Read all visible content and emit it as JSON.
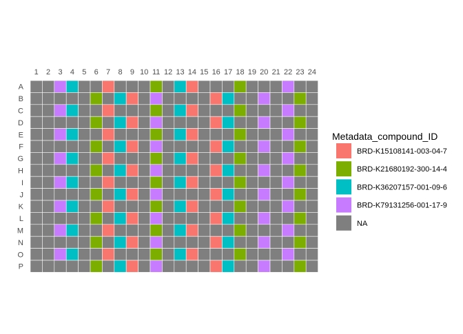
{
  "chart_data": {
    "type": "heatmap",
    "title": "",
    "xlabel": "",
    "ylabel": "",
    "columns": [
      "1",
      "2",
      "3",
      "4",
      "5",
      "6",
      "7",
      "8",
      "9",
      "10",
      "11",
      "12",
      "13",
      "14",
      "15",
      "16",
      "17",
      "18",
      "19",
      "20",
      "21",
      "22",
      "23",
      "24"
    ],
    "rows": [
      "A",
      "B",
      "C",
      "D",
      "E",
      "F",
      "G",
      "H",
      "I",
      "J",
      "K",
      "L",
      "M",
      "N",
      "O",
      "P"
    ],
    "legend": {
      "title": "Metadata_compound_ID",
      "placement": "right",
      "entries": [
        {
          "label": "BRD-K15108141-003-04-7",
          "color": "#F8766D"
        },
        {
          "label": "BRD-K21680192-300-14-4",
          "color": "#7CAE00"
        },
        {
          "label": "BRD-K36207157-001-09-6",
          "color": "#00BFC4"
        },
        {
          "label": "BRD-K79131256-001-17-9",
          "color": "#C77CFF"
        },
        {
          "label": "NA",
          "color": "#7F7F7F"
        }
      ]
    },
    "wells": [
      [
        "NA",
        "NA",
        "BRD-K79131256-001-17-9",
        "BRD-K36207157-001-09-6",
        "NA",
        "NA",
        "BRD-K15108141-003-04-7",
        "NA",
        "NA",
        "NA",
        "BRD-K21680192-300-14-4",
        "NA",
        "BRD-K36207157-001-09-6",
        "BRD-K15108141-003-04-7",
        "NA",
        "NA",
        "NA",
        "BRD-K21680192-300-14-4",
        "NA",
        "NA",
        "NA",
        "BRD-K79131256-001-17-9",
        "NA",
        "NA"
      ],
      [
        "NA",
        "NA",
        "NA",
        "NA",
        "NA",
        "BRD-K21680192-300-14-4",
        "NA",
        "BRD-K36207157-001-09-6",
        "BRD-K15108141-003-04-7",
        "NA",
        "BRD-K79131256-001-17-9",
        "NA",
        "NA",
        "NA",
        "NA",
        "BRD-K15108141-003-04-7",
        "BRD-K36207157-001-09-6",
        "NA",
        "NA",
        "BRD-K79131256-001-17-9",
        "NA",
        "NA",
        "BRD-K21680192-300-14-4",
        "NA"
      ],
      [
        "NA",
        "NA",
        "BRD-K79131256-001-17-9",
        "BRD-K36207157-001-09-6",
        "NA",
        "NA",
        "BRD-K15108141-003-04-7",
        "NA",
        "NA",
        "NA",
        "BRD-K21680192-300-14-4",
        "NA",
        "BRD-K36207157-001-09-6",
        "BRD-K15108141-003-04-7",
        "NA",
        "NA",
        "NA",
        "BRD-K21680192-300-14-4",
        "NA",
        "NA",
        "NA",
        "BRD-K79131256-001-17-9",
        "NA",
        "NA"
      ],
      [
        "NA",
        "NA",
        "NA",
        "NA",
        "NA",
        "BRD-K21680192-300-14-4",
        "NA",
        "BRD-K36207157-001-09-6",
        "BRD-K15108141-003-04-7",
        "NA",
        "BRD-K79131256-001-17-9",
        "NA",
        "NA",
        "NA",
        "NA",
        "BRD-K15108141-003-04-7",
        "BRD-K36207157-001-09-6",
        "NA",
        "NA",
        "BRD-K79131256-001-17-9",
        "NA",
        "NA",
        "BRD-K21680192-300-14-4",
        "NA"
      ],
      [
        "NA",
        "NA",
        "BRD-K79131256-001-17-9",
        "BRD-K36207157-001-09-6",
        "NA",
        "NA",
        "BRD-K15108141-003-04-7",
        "NA",
        "NA",
        "NA",
        "BRD-K21680192-300-14-4",
        "NA",
        "BRD-K36207157-001-09-6",
        "BRD-K15108141-003-04-7",
        "NA",
        "NA",
        "NA",
        "BRD-K21680192-300-14-4",
        "NA",
        "NA",
        "NA",
        "BRD-K79131256-001-17-9",
        "NA",
        "NA"
      ],
      [
        "NA",
        "NA",
        "NA",
        "NA",
        "NA",
        "BRD-K21680192-300-14-4",
        "NA",
        "BRD-K36207157-001-09-6",
        "BRD-K15108141-003-04-7",
        "NA",
        "BRD-K79131256-001-17-9",
        "NA",
        "NA",
        "NA",
        "NA",
        "BRD-K15108141-003-04-7",
        "BRD-K36207157-001-09-6",
        "NA",
        "NA",
        "BRD-K79131256-001-17-9",
        "NA",
        "NA",
        "BRD-K21680192-300-14-4",
        "NA"
      ],
      [
        "NA",
        "NA",
        "BRD-K79131256-001-17-9",
        "BRD-K36207157-001-09-6",
        "NA",
        "NA",
        "BRD-K15108141-003-04-7",
        "NA",
        "NA",
        "NA",
        "BRD-K21680192-300-14-4",
        "NA",
        "BRD-K36207157-001-09-6",
        "BRD-K15108141-003-04-7",
        "NA",
        "NA",
        "NA",
        "BRD-K21680192-300-14-4",
        "NA",
        "NA",
        "NA",
        "BRD-K79131256-001-17-9",
        "NA",
        "NA"
      ],
      [
        "NA",
        "NA",
        "NA",
        "NA",
        "NA",
        "BRD-K21680192-300-14-4",
        "NA",
        "BRD-K36207157-001-09-6",
        "BRD-K15108141-003-04-7",
        "NA",
        "BRD-K79131256-001-17-9",
        "NA",
        "NA",
        "NA",
        "NA",
        "BRD-K15108141-003-04-7",
        "BRD-K36207157-001-09-6",
        "NA",
        "NA",
        "BRD-K79131256-001-17-9",
        "NA",
        "NA",
        "BRD-K21680192-300-14-4",
        "NA"
      ],
      [
        "NA",
        "NA",
        "BRD-K79131256-001-17-9",
        "BRD-K36207157-001-09-6",
        "NA",
        "NA",
        "BRD-K15108141-003-04-7",
        "NA",
        "NA",
        "NA",
        "BRD-K21680192-300-14-4",
        "NA",
        "BRD-K36207157-001-09-6",
        "BRD-K15108141-003-04-7",
        "NA",
        "NA",
        "NA",
        "BRD-K21680192-300-14-4",
        "NA",
        "NA",
        "NA",
        "BRD-K79131256-001-17-9",
        "NA",
        "NA"
      ],
      [
        "NA",
        "NA",
        "NA",
        "NA",
        "NA",
        "BRD-K21680192-300-14-4",
        "NA",
        "BRD-K36207157-001-09-6",
        "BRD-K15108141-003-04-7",
        "NA",
        "BRD-K79131256-001-17-9",
        "NA",
        "NA",
        "NA",
        "NA",
        "BRD-K15108141-003-04-7",
        "BRD-K36207157-001-09-6",
        "NA",
        "NA",
        "BRD-K79131256-001-17-9",
        "NA",
        "NA",
        "BRD-K21680192-300-14-4",
        "NA"
      ],
      [
        "NA",
        "NA",
        "BRD-K79131256-001-17-9",
        "BRD-K36207157-001-09-6",
        "NA",
        "NA",
        "BRD-K15108141-003-04-7",
        "NA",
        "NA",
        "NA",
        "BRD-K21680192-300-14-4",
        "NA",
        "BRD-K36207157-001-09-6",
        "BRD-K15108141-003-04-7",
        "NA",
        "NA",
        "NA",
        "BRD-K21680192-300-14-4",
        "NA",
        "NA",
        "NA",
        "BRD-K79131256-001-17-9",
        "NA",
        "NA"
      ],
      [
        "NA",
        "NA",
        "NA",
        "NA",
        "NA",
        "BRD-K21680192-300-14-4",
        "NA",
        "BRD-K36207157-001-09-6",
        "BRD-K15108141-003-04-7",
        "NA",
        "BRD-K79131256-001-17-9",
        "NA",
        "NA",
        "NA",
        "NA",
        "BRD-K15108141-003-04-7",
        "BRD-K36207157-001-09-6",
        "NA",
        "NA",
        "BRD-K79131256-001-17-9",
        "NA",
        "NA",
        "BRD-K21680192-300-14-4",
        "NA"
      ],
      [
        "NA",
        "NA",
        "BRD-K79131256-001-17-9",
        "BRD-K36207157-001-09-6",
        "NA",
        "NA",
        "BRD-K15108141-003-04-7",
        "NA",
        "NA",
        "NA",
        "BRD-K21680192-300-14-4",
        "NA",
        "BRD-K36207157-001-09-6",
        "BRD-K15108141-003-04-7",
        "NA",
        "NA",
        "NA",
        "BRD-K21680192-300-14-4",
        "NA",
        "NA",
        "NA",
        "BRD-K79131256-001-17-9",
        "NA",
        "NA"
      ],
      [
        "NA",
        "NA",
        "NA",
        "NA",
        "NA",
        "BRD-K21680192-300-14-4",
        "NA",
        "BRD-K36207157-001-09-6",
        "BRD-K15108141-003-04-7",
        "NA",
        "BRD-K79131256-001-17-9",
        "NA",
        "NA",
        "NA",
        "NA",
        "BRD-K15108141-003-04-7",
        "BRD-K36207157-001-09-6",
        "NA",
        "NA",
        "BRD-K79131256-001-17-9",
        "NA",
        "NA",
        "BRD-K21680192-300-14-4",
        "NA"
      ],
      [
        "NA",
        "NA",
        "BRD-K79131256-001-17-9",
        "BRD-K36207157-001-09-6",
        "NA",
        "NA",
        "BRD-K15108141-003-04-7",
        "NA",
        "NA",
        "NA",
        "BRD-K21680192-300-14-4",
        "NA",
        "BRD-K36207157-001-09-6",
        "BRD-K15108141-003-04-7",
        "NA",
        "NA",
        "NA",
        "BRD-K21680192-300-14-4",
        "NA",
        "NA",
        "NA",
        "BRD-K79131256-001-17-9",
        "NA",
        "NA"
      ],
      [
        "NA",
        "NA",
        "NA",
        "NA",
        "NA",
        "BRD-K21680192-300-14-4",
        "NA",
        "BRD-K36207157-001-09-6",
        "BRD-K15108141-003-04-7",
        "NA",
        "BRD-K79131256-001-17-9",
        "NA",
        "NA",
        "NA",
        "NA",
        "BRD-K15108141-003-04-7",
        "BRD-K36207157-001-09-6",
        "NA",
        "NA",
        "BRD-K79131256-001-17-9",
        "NA",
        "NA",
        "BRD-K21680192-300-14-4",
        "NA"
      ]
    ]
  }
}
